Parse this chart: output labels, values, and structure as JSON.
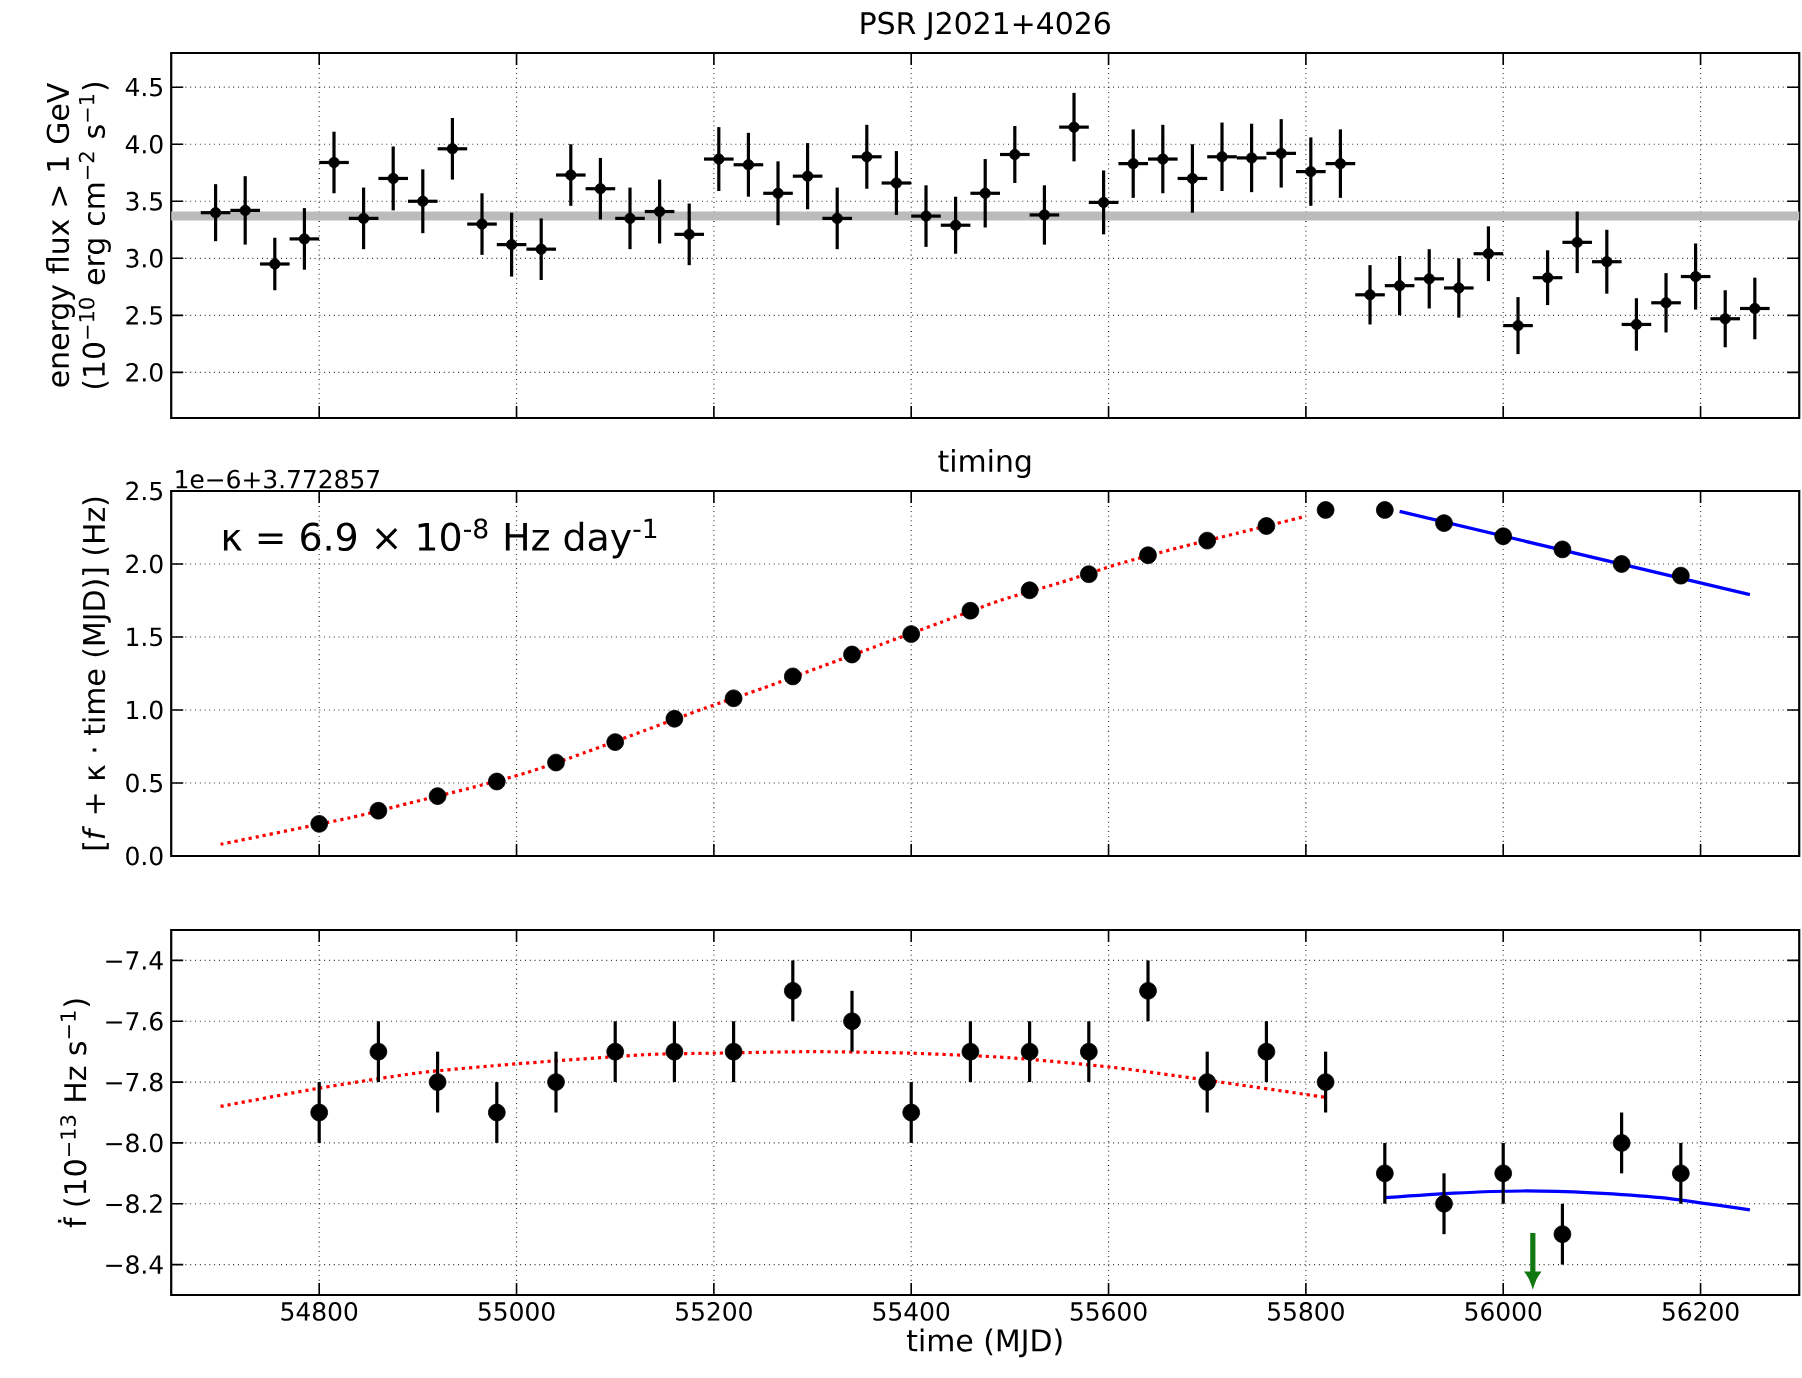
{
  "chart_data": [
    {
      "type": "scatter",
      "title": "PSR J2021+4026",
      "ylabel": "energy flux > 1 GeV (10$^{−10}$ erg cm$^{−2}$ s$^{−1}$)",
      "xlim": [
        54650,
        56300
      ],
      "xticks": [
        54800,
        55000,
        55200,
        55400,
        55600,
        55800,
        56000,
        56200
      ],
      "ylim": [
        1.6,
        4.8
      ],
      "yticks": [
        {
          "value": 2,
          "label": "2.0"
        },
        2.5,
        {
          "value": 3,
          "label": "3.0"
        },
        3.5,
        {
          "value": 4,
          "label": "4.0"
        },
        4.5
      ],
      "tick_labels": "y",
      "grid": true,
      "ref_lines": [
        {
          "axis": "y",
          "value": 3.37,
          "color": "#bbbbbb"
        }
      ],
      "series": [
        {
          "marker": "circle",
          "color": "#000000",
          "x": [
            54695,
            54725,
            54755,
            54785,
            54815,
            54845,
            54875,
            54905,
            54935,
            54965,
            54995,
            55025,
            55055,
            55085,
            55115,
            55145,
            55175,
            55205,
            55235,
            55265,
            55295,
            55325,
            55355,
            55385,
            55415,
            55445,
            55475,
            55505,
            55535,
            55565,
            55595,
            55625,
            55655,
            55685,
            55715,
            55745,
            55775,
            55805,
            55835,
            55865,
            55895,
            55925,
            55955,
            55985,
            56015,
            56045,
            56075,
            56105,
            56135,
            56165,
            56195,
            56225,
            56255
          ],
          "values": [
            3.4,
            3.42,
            2.95,
            3.17,
            3.84,
            3.35,
            3.7,
            3.5,
            3.96,
            3.3,
            3.12,
            3.08,
            3.73,
            3.61,
            3.35,
            3.41,
            3.21,
            3.87,
            3.82,
            3.57,
            3.72,
            3.35,
            3.89,
            3.66,
            3.37,
            3.29,
            3.57,
            3.91,
            3.38,
            4.15,
            3.49,
            3.83,
            3.87,
            3.7,
            3.89,
            3.88,
            3.92,
            3.76,
            3.83,
            2.68,
            2.76,
            2.82,
            2.74,
            3.04,
            2.41,
            2.83,
            3.14,
            2.97,
            2.42,
            2.61,
            2.84,
            2.47,
            2.56
          ],
          "errors": [
            0.25,
            0.3,
            0.23,
            0.27,
            0.27,
            0.27,
            0.28,
            0.28,
            0.27,
            0.27,
            0.28,
            0.27,
            0.27,
            0.27,
            0.27,
            0.28,
            0.27,
            0.28,
            0.28,
            0.28,
            0.29,
            0.27,
            0.28,
            0.28,
            0.27,
            0.25,
            0.3,
            0.25,
            0.26,
            0.3,
            0.28,
            0.3,
            0.3,
            0.3,
            0.3,
            0.3,
            0.3,
            0.3,
            0.3,
            0.26,
            0.26,
            0.26,
            0.26,
            0.24,
            0.25,
            0.24,
            0.27,
            0.28,
            0.23,
            0.26,
            0.29,
            0.25,
            0.27
          ],
          "xerrors": [
            15,
            15,
            15,
            15,
            15,
            15,
            15,
            15,
            15,
            15,
            15,
            15,
            15,
            15,
            15,
            15,
            15,
            15,
            15,
            15,
            15,
            15,
            15,
            15,
            15,
            15,
            15,
            15,
            15,
            15,
            15,
            15,
            15,
            15,
            15,
            15,
            15,
            15,
            15,
            15,
            15,
            15,
            15,
            15,
            15,
            15,
            15,
            15,
            15,
            15,
            15,
            15,
            15
          ]
        }
      ]
    },
    {
      "type": "scatter",
      "title": "timing",
      "ylabel": "[*f* + κ · time (MJD)] (Hz)",
      "annotations": [
        "1e−6+3.772857",
        "κ = 6.9 × 10$^{-8}$ Hz day$^{-1}$"
      ],
      "xlim": [
        54650,
        56300
      ],
      "xticks": [
        54800,
        55000,
        55200,
        55400,
        55600,
        55800,
        56000,
        56200
      ],
      "ylim": [
        0,
        2.5
      ],
      "yticks": [
        {
          "value": 0,
          "label": "0.0"
        },
        0.5,
        {
          "value": 1,
          "label": "1.0"
        },
        1.5,
        {
          "value": 2,
          "label": "2.0"
        },
        2.5
      ],
      "tick_labels": "y",
      "grid": true,
      "series": [
        {
          "type": "line",
          "line_style": "dotted",
          "color": "#ff0000",
          "x": [
            54700,
            54830,
            54890,
            54950,
            55010,
            55070,
            55130,
            55190,
            55250,
            55310,
            55370,
            55430,
            55490,
            55550,
            55610,
            55670,
            55730,
            55790,
            55800
          ],
          "values": [
            0.08,
            0.26,
            0.36,
            0.46,
            0.57,
            0.71,
            0.86,
            1.01,
            1.15,
            1.3,
            1.45,
            1.6,
            1.75,
            1.87,
            2.0,
            2.11,
            2.21,
            2.31,
            2.33
          ]
        },
        {
          "type": "line",
          "line_style": "solid",
          "color": "#0000ff",
          "x": [
            55895,
            56250
          ],
          "values": [
            2.36,
            1.79
          ]
        },
        {
          "marker": "circle",
          "color": "#000000",
          "x": [
            54800,
            54860,
            54920,
            54980,
            55040,
            55100,
            55160,
            55220,
            55280,
            55340,
            55400,
            55460,
            55520,
            55580,
            55640,
            55700,
            55760,
            55820,
            55880,
            55940,
            56000,
            56060,
            56120,
            56180
          ],
          "values": [
            0.22,
            0.31,
            0.41,
            0.51,
            0.64,
            0.78,
            0.94,
            1.08,
            1.23,
            1.38,
            1.52,
            1.68,
            1.82,
            1.93,
            2.06,
            2.16,
            2.26,
            2.37,
            2.37,
            2.28,
            2.19,
            2.1,
            2.0,
            1.92
          ]
        }
      ]
    },
    {
      "type": "scatter",
      "xlabel": "time (MJD)",
      "ylabel": "ḟ (10$^{−13}$ Hz s$^{−1}$)",
      "xlim": [
        54650,
        56300
      ],
      "xticks": [
        54800,
        55000,
        55200,
        55400,
        55600,
        55800,
        56000,
        56200
      ],
      "ylim": [
        -8.5,
        -7.3
      ],
      "yticks": [
        {
          "value": -8.4,
          "label": "−8.4"
        },
        {
          "value": -8.2,
          "label": "−8.2"
        },
        {
          "value": -8.0,
          "label": "−8.0"
        },
        {
          "value": -7.8,
          "label": "−7.8"
        },
        {
          "value": -7.6,
          "label": "−7.6"
        },
        {
          "value": -7.4,
          "label": "−7.4"
        }
      ],
      "grid": true,
      "ref_lines": [
        {
          "axis": "x",
          "value": 56030,
          "color": "#117711"
        }
      ],
      "series": [
        {
          "type": "line",
          "line_style": "dotted",
          "color": "#ff0000",
          "x": [
            54700,
            54800,
            54900,
            55000,
            55130,
            55200,
            55300,
            55400,
            55500,
            55600,
            55670,
            55820
          ],
          "values": [
            -7.88,
            -7.82,
            -7.77,
            -7.74,
            -7.71,
            -7.705,
            -7.7,
            -7.705,
            -7.72,
            -7.75,
            -7.78,
            -7.85
          ]
        },
        {
          "type": "line",
          "line_style": "solid",
          "color": "#0000ff",
          "x": [
            55880,
            55950,
            56020,
            56090,
            56160,
            56250
          ],
          "values": [
            -8.18,
            -8.165,
            -8.158,
            -8.164,
            -8.18,
            -8.22
          ]
        },
        {
          "marker": "circle",
          "color": "#000000",
          "x": [
            54800,
            54860,
            54920,
            54980,
            55040,
            55100,
            55160,
            55220,
            55280,
            55340,
            55400,
            55460,
            55520,
            55580,
            55640,
            55700,
            55760,
            55820,
            55880,
            55940,
            56000,
            56060,
            56120,
            56180
          ],
          "values": [
            -7.9,
            -7.7,
            -7.8,
            -7.9,
            -7.8,
            -7.7,
            -7.7,
            -7.7,
            -7.5,
            -7.6,
            -7.9,
            -7.7,
            -7.7,
            -7.7,
            -7.5,
            -7.8,
            -7.7,
            -7.8,
            -8.1,
            -8.2,
            -8.1,
            -8.3,
            -8.0,
            -8.1
          ],
          "errors": [
            0.1,
            0.1,
            0.1,
            0.1,
            0.1,
            0.1,
            0.1,
            0.1,
            0.1,
            0.1,
            0.1,
            0.1,
            0.1,
            0.1,
            0.1,
            0.1,
            0.1,
            0.1,
            0.1,
            0.1,
            0.1,
            0.1,
            0.1,
            0.1
          ]
        }
      ]
    }
  ]
}
